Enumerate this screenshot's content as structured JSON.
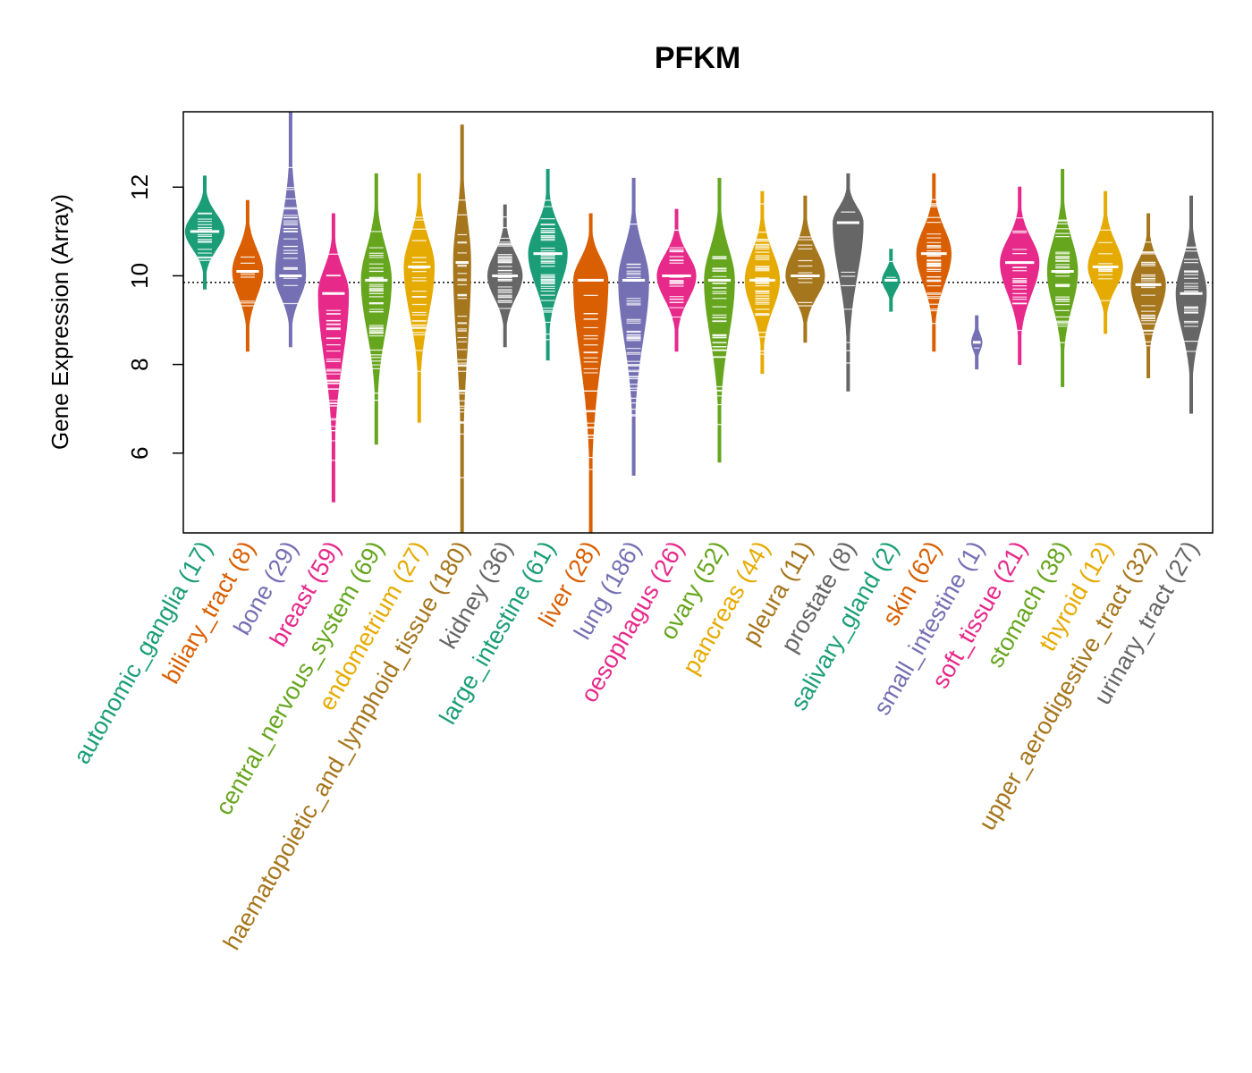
{
  "chart_data": {
    "type": "violin",
    "title": "PFKM",
    "xlabel": "",
    "ylabel": "Gene Expression (Array)",
    "ylim": [
      4.2,
      13.7
    ],
    "yticks": [
      6,
      8,
      10,
      12
    ],
    "reference_line": 9.85,
    "categories": [
      {
        "name": "autonomic_ganglia",
        "n": 17,
        "label": "autonomic_ganglia (17)",
        "color": "#1B9E77",
        "min": 9.7,
        "max": 12.25,
        "mode": 11.0,
        "width": 0.45
      },
      {
        "name": "biliary_tract",
        "n": 8,
        "label": "biliary_tract (8)",
        "color": "#D95F02",
        "min": 8.3,
        "max": 11.7,
        "mode": 10.1,
        "width": 0.35
      },
      {
        "name": "bone",
        "n": 29,
        "label": "bone (29)",
        "color": "#7570B3",
        "min": 8.4,
        "max": 13.7,
        "mode": 10.0,
        "width": 0.35
      },
      {
        "name": "breast",
        "n": 59,
        "label": "breast (59)",
        "color": "#E7298A",
        "min": 4.9,
        "max": 11.4,
        "mode": 9.6,
        "width": 0.35
      },
      {
        "name": "central_nervous_system",
        "n": 69,
        "label": "central_nervous_system (69)",
        "color": "#66A61E",
        "min": 6.2,
        "max": 12.3,
        "mode": 9.9,
        "width": 0.35
      },
      {
        "name": "endometrium",
        "n": 27,
        "label": "endometrium (27)",
        "color": "#E6AB02",
        "min": 6.7,
        "max": 12.3,
        "mode": 10.2,
        "width": 0.35
      },
      {
        "name": "haematopoietic_and_lymphoid_tissue",
        "n": 180,
        "label": "haematopoietic_and_lymphoid_tissue (180)",
        "color": "#A6761D",
        "min": 4.2,
        "max": 13.4,
        "mode": 10.3,
        "width": 0.2
      },
      {
        "name": "kidney",
        "n": 36,
        "label": "kidney (36)",
        "color": "#666666",
        "min": 8.4,
        "max": 11.6,
        "mode": 10.0,
        "width": 0.4
      },
      {
        "name": "large_intestine",
        "n": 61,
        "label": "large_intestine (61)",
        "color": "#1B9E77",
        "min": 8.1,
        "max": 12.4,
        "mode": 10.5,
        "width": 0.45
      },
      {
        "name": "liver",
        "n": 28,
        "label": "liver (28)",
        "color": "#D95F02",
        "min": 4.2,
        "max": 11.4,
        "mode": 9.9,
        "width": 0.4
      },
      {
        "name": "lung",
        "n": 186,
        "label": "lung (186)",
        "color": "#7570B3",
        "min": 5.5,
        "max": 12.2,
        "mode": 9.9,
        "width": 0.35
      },
      {
        "name": "oesophagus",
        "n": 26,
        "label": "oesophagus (26)",
        "color": "#E7298A",
        "min": 8.3,
        "max": 11.5,
        "mode": 10.0,
        "width": 0.45
      },
      {
        "name": "ovary",
        "n": 52,
        "label": "ovary (52)",
        "color": "#66A61E",
        "min": 5.8,
        "max": 12.2,
        "mode": 9.9,
        "width": 0.35
      },
      {
        "name": "pancreas",
        "n": 44,
        "label": "pancreas (44)",
        "color": "#E6AB02",
        "min": 7.8,
        "max": 11.9,
        "mode": 9.9,
        "width": 0.4
      },
      {
        "name": "pleura",
        "n": 11,
        "label": "pleura (11)",
        "color": "#A6761D",
        "min": 8.5,
        "max": 11.8,
        "mode": 10.0,
        "width": 0.45
      },
      {
        "name": "prostate",
        "n": 8,
        "label": "prostate (8)",
        "color": "#666666",
        "min": 7.4,
        "max": 12.3,
        "mode": 11.2,
        "width": 0.35
      },
      {
        "name": "salivary_gland",
        "n": 2,
        "label": "salivary_gland (2)",
        "color": "#1B9E77",
        "min": 9.2,
        "max": 10.6,
        "mode": 9.9,
        "width": 0.2
      },
      {
        "name": "skin",
        "n": 62,
        "label": "skin (62)",
        "color": "#D95F02",
        "min": 8.3,
        "max": 12.3,
        "mode": 10.5,
        "width": 0.4
      },
      {
        "name": "small_intestine",
        "n": 1,
        "label": "small_intestine (1)",
        "color": "#7570B3",
        "min": 7.9,
        "max": 9.1,
        "mode": 8.5,
        "width": 0.12
      },
      {
        "name": "soft_tissue",
        "n": 21,
        "label": "soft_tissue (21)",
        "color": "#E7298A",
        "min": 8.0,
        "max": 12.0,
        "mode": 10.3,
        "width": 0.45
      },
      {
        "name": "stomach",
        "n": 38,
        "label": "stomach (38)",
        "color": "#66A61E",
        "min": 7.5,
        "max": 12.4,
        "mode": 10.1,
        "width": 0.35
      },
      {
        "name": "thyroid",
        "n": 12,
        "label": "thyroid (12)",
        "color": "#E6AB02",
        "min": 8.7,
        "max": 11.9,
        "mode": 10.2,
        "width": 0.4
      },
      {
        "name": "upper_aerodigestive_tract",
        "n": 32,
        "label": "upper_aerodigestive_tract (32)",
        "color": "#A6761D",
        "min": 7.7,
        "max": 11.4,
        "mode": 9.8,
        "width": 0.4
      },
      {
        "name": "urinary_tract",
        "n": 27,
        "label": "urinary_tract (27)",
        "color": "#666666",
        "min": 6.9,
        "max": 11.8,
        "mode": 9.6,
        "width": 0.35
      }
    ]
  }
}
